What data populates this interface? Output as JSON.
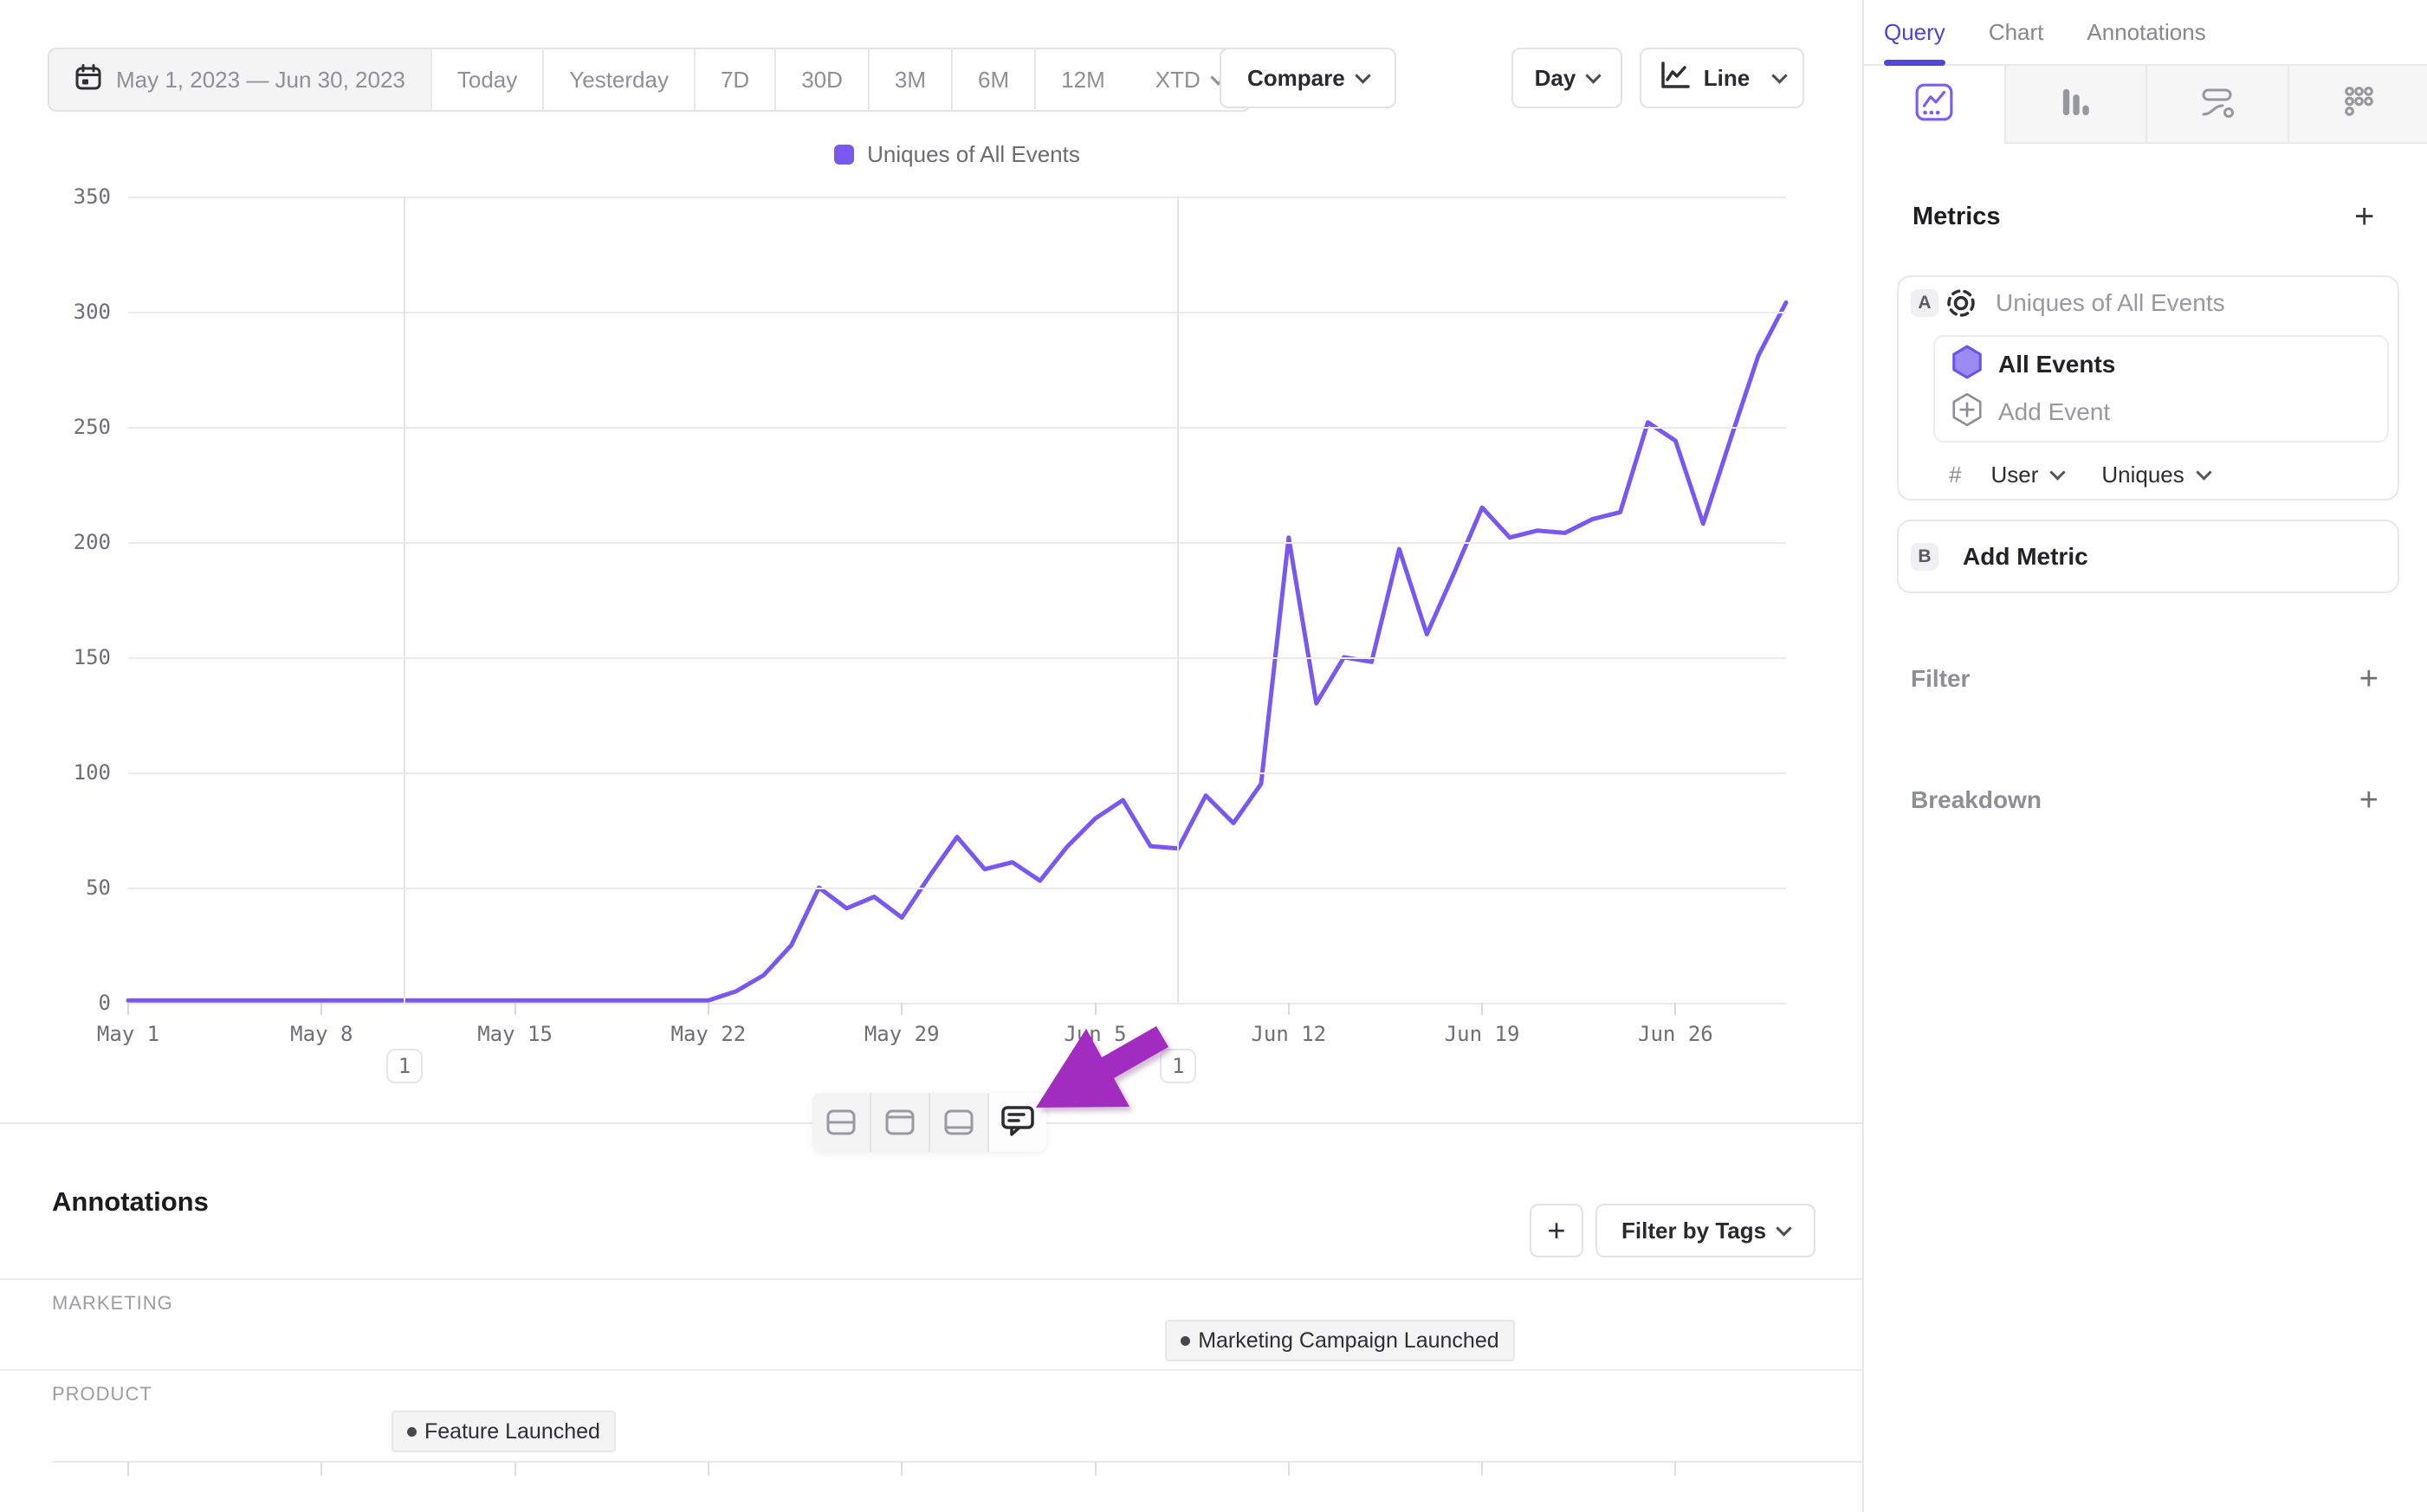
{
  "icons": {
    "plus": "+"
  },
  "toolbar": {
    "date_range": "May 1, 2023 — Jun 30, 2023",
    "presets": [
      "Today",
      "Yesterday",
      "7D",
      "30D",
      "3M",
      "6M",
      "12M"
    ],
    "xtd_label": "XTD",
    "compare_label": "Compare",
    "granularity_label": "Day",
    "chart_type_label": "Line"
  },
  "legend": {
    "label": "Uniques of All Events"
  },
  "chart_data": {
    "type": "line",
    "title": "Uniques of All Events",
    "start_date": "May 1, 2023",
    "end_date": "Jun 30, 2023",
    "x_unit": "day",
    "x_tick_days": [
      0,
      7,
      14,
      21,
      28,
      35,
      42,
      49,
      56
    ],
    "x_tick_labels": [
      "May 1",
      "May 8",
      "May 15",
      "May 22",
      "May 29",
      "Jun 5",
      "Jun 12",
      "Jun 19",
      "Jun 26"
    ],
    "y_ticks": [
      0,
      50,
      100,
      150,
      200,
      250,
      300,
      350
    ],
    "ylim": [
      0,
      350
    ],
    "grid": "horizontal",
    "legend_position": "top",
    "series": [
      {
        "name": "Uniques of All Events",
        "color": "#7a58f0",
        "values": [
          1,
          1,
          1,
          1,
          1,
          1,
          1,
          1,
          1,
          1,
          1,
          1,
          1,
          1,
          1,
          1,
          1,
          1,
          1,
          1,
          1,
          1,
          5,
          12,
          25,
          50,
          41,
          46,
          37,
          55,
          72,
          58,
          61,
          53,
          68,
          80,
          88,
          68,
          67,
          90,
          78,
          95,
          202,
          130,
          150,
          148,
          197,
          160,
          187,
          215,
          202,
          205,
          204,
          210,
          213,
          252,
          244,
          208,
          245,
          281,
          304
        ]
      }
    ],
    "annotation_markers": [
      {
        "day": 10,
        "badge": "1"
      },
      {
        "day": 38,
        "badge": "1"
      }
    ]
  },
  "chart_toolbar": {
    "icons": [
      "row-split",
      "panel-top",
      "panel-bottom",
      "comment"
    ],
    "active": "comment"
  },
  "annotations_panel": {
    "title": "Annotations",
    "filter_by_tags_label": "Filter by Tags",
    "groups": [
      {
        "name": "MARKETING",
        "items": [
          {
            "label": "Marketing Campaign Launched",
            "day": 38
          }
        ]
      },
      {
        "name": "PRODUCT",
        "items": [
          {
            "label": "Feature Launched",
            "day": 10
          }
        ]
      }
    ]
  },
  "sidebar": {
    "tabs": [
      {
        "label": "Query",
        "active": true
      },
      {
        "label": "Chart",
        "active": false
      },
      {
        "label": "Annotations",
        "active": false
      }
    ],
    "chart_types": [
      "line",
      "bar",
      "flow",
      "retention"
    ],
    "metrics": {
      "heading": "Metrics",
      "cards": [
        {
          "letter": "A",
          "metric": "Uniques of All Events",
          "events": [
            {
              "label": "All Events"
            }
          ],
          "add_event_label": "Add Event",
          "aggregation": {
            "hash": "#",
            "entity": "User",
            "function": "Uniques"
          }
        },
        {
          "letter": "B",
          "label": "Add Metric"
        }
      ]
    },
    "filter_label": "Filter",
    "breakdown_label": "Breakdown"
  },
  "colors": {
    "accent_purple": "#7a58f0",
    "tab_purple": "#4f43d6",
    "arrow_magenta": "#a22cc0"
  }
}
